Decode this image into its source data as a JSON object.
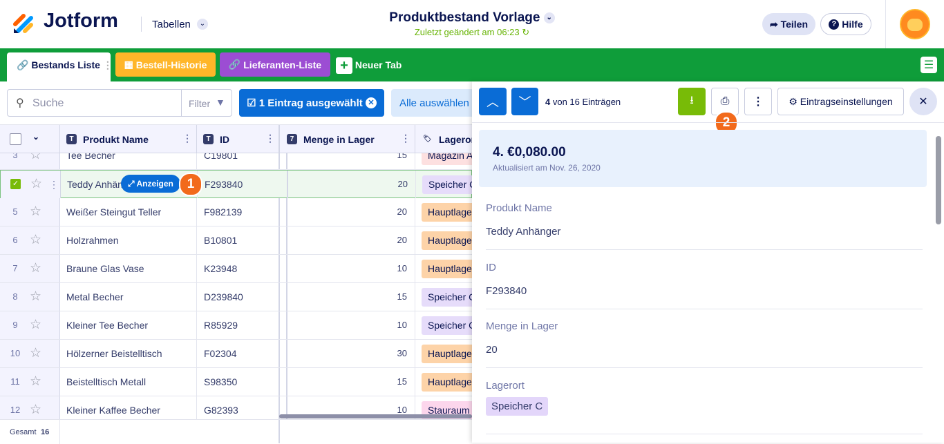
{
  "header": {
    "logo": "Jotform",
    "workspace": "Tabellen",
    "title": "Produktbestand Vorlage",
    "subtitle": "Zuletzt geändert am 06:23",
    "share": "Teilen",
    "help": "Hilfe"
  },
  "tabs": [
    "Bestands Liste",
    "Bestell-Historie",
    "Lieferanten-Liste",
    "Neuer Tab"
  ],
  "toolbar": {
    "search": "Suche",
    "filter": "Filter",
    "selected": "1 Eintrag ausgewählt",
    "select_all": "Alle auswählen"
  },
  "table": {
    "columns": [
      "Produkt Name",
      "ID",
      "Menge in Lager",
      "Lagerort"
    ],
    "rows": [
      [
        "3",
        "Tee Becher",
        "C19801",
        "15",
        "Magazin A"
      ],
      [
        "4",
        "Teddy Anhänger",
        "F293840",
        "20",
        "Speicher C"
      ],
      [
        "5",
        "Weißer Steingut Teller",
        "F982139",
        "20",
        "Hauptlager"
      ],
      [
        "6",
        "Holzrahmen",
        "B10801",
        "20",
        "Hauptlager"
      ],
      [
        "7",
        "Braune Glas Vase",
        "K23948",
        "10",
        "Hauptlager"
      ],
      [
        "8",
        "Metal Becher",
        "D239840",
        "15",
        "Speicher C"
      ],
      [
        "9",
        "Kleiner Tee Becher",
        "R85929",
        "10",
        "Speicher C"
      ],
      [
        "10",
        "Hölzerner Beistelltisch",
        "F02304",
        "30",
        "Hauptlager"
      ],
      [
        "11",
        "Beistelltisch Metall",
        "S98350",
        "15",
        "Hauptlager"
      ],
      [
        "12",
        "Kleiner Kaffee Becher",
        "G82393",
        "10",
        "Stauraum"
      ]
    ],
    "view_button": "Anzeigen",
    "view_badge": "1",
    "footer_label": "Gesamt",
    "footer_count": "16"
  },
  "panel": {
    "position": "4",
    "position_text": "von 16 Einträgen",
    "settings": "Eintragseinstellungen",
    "print_badge": "2",
    "card_title": "4. €0,080.00",
    "card_subtitle": "Aktualisiert am Nov. 26, 2020",
    "fields": [
      {
        "label": "Produkt Name",
        "value": "Teddy Anhänger"
      },
      {
        "label": "ID",
        "value": "F293840"
      },
      {
        "label": "Menge in Lager",
        "value": "20"
      },
      {
        "label": "Lagerort",
        "value": "Speicher C"
      }
    ]
  }
}
